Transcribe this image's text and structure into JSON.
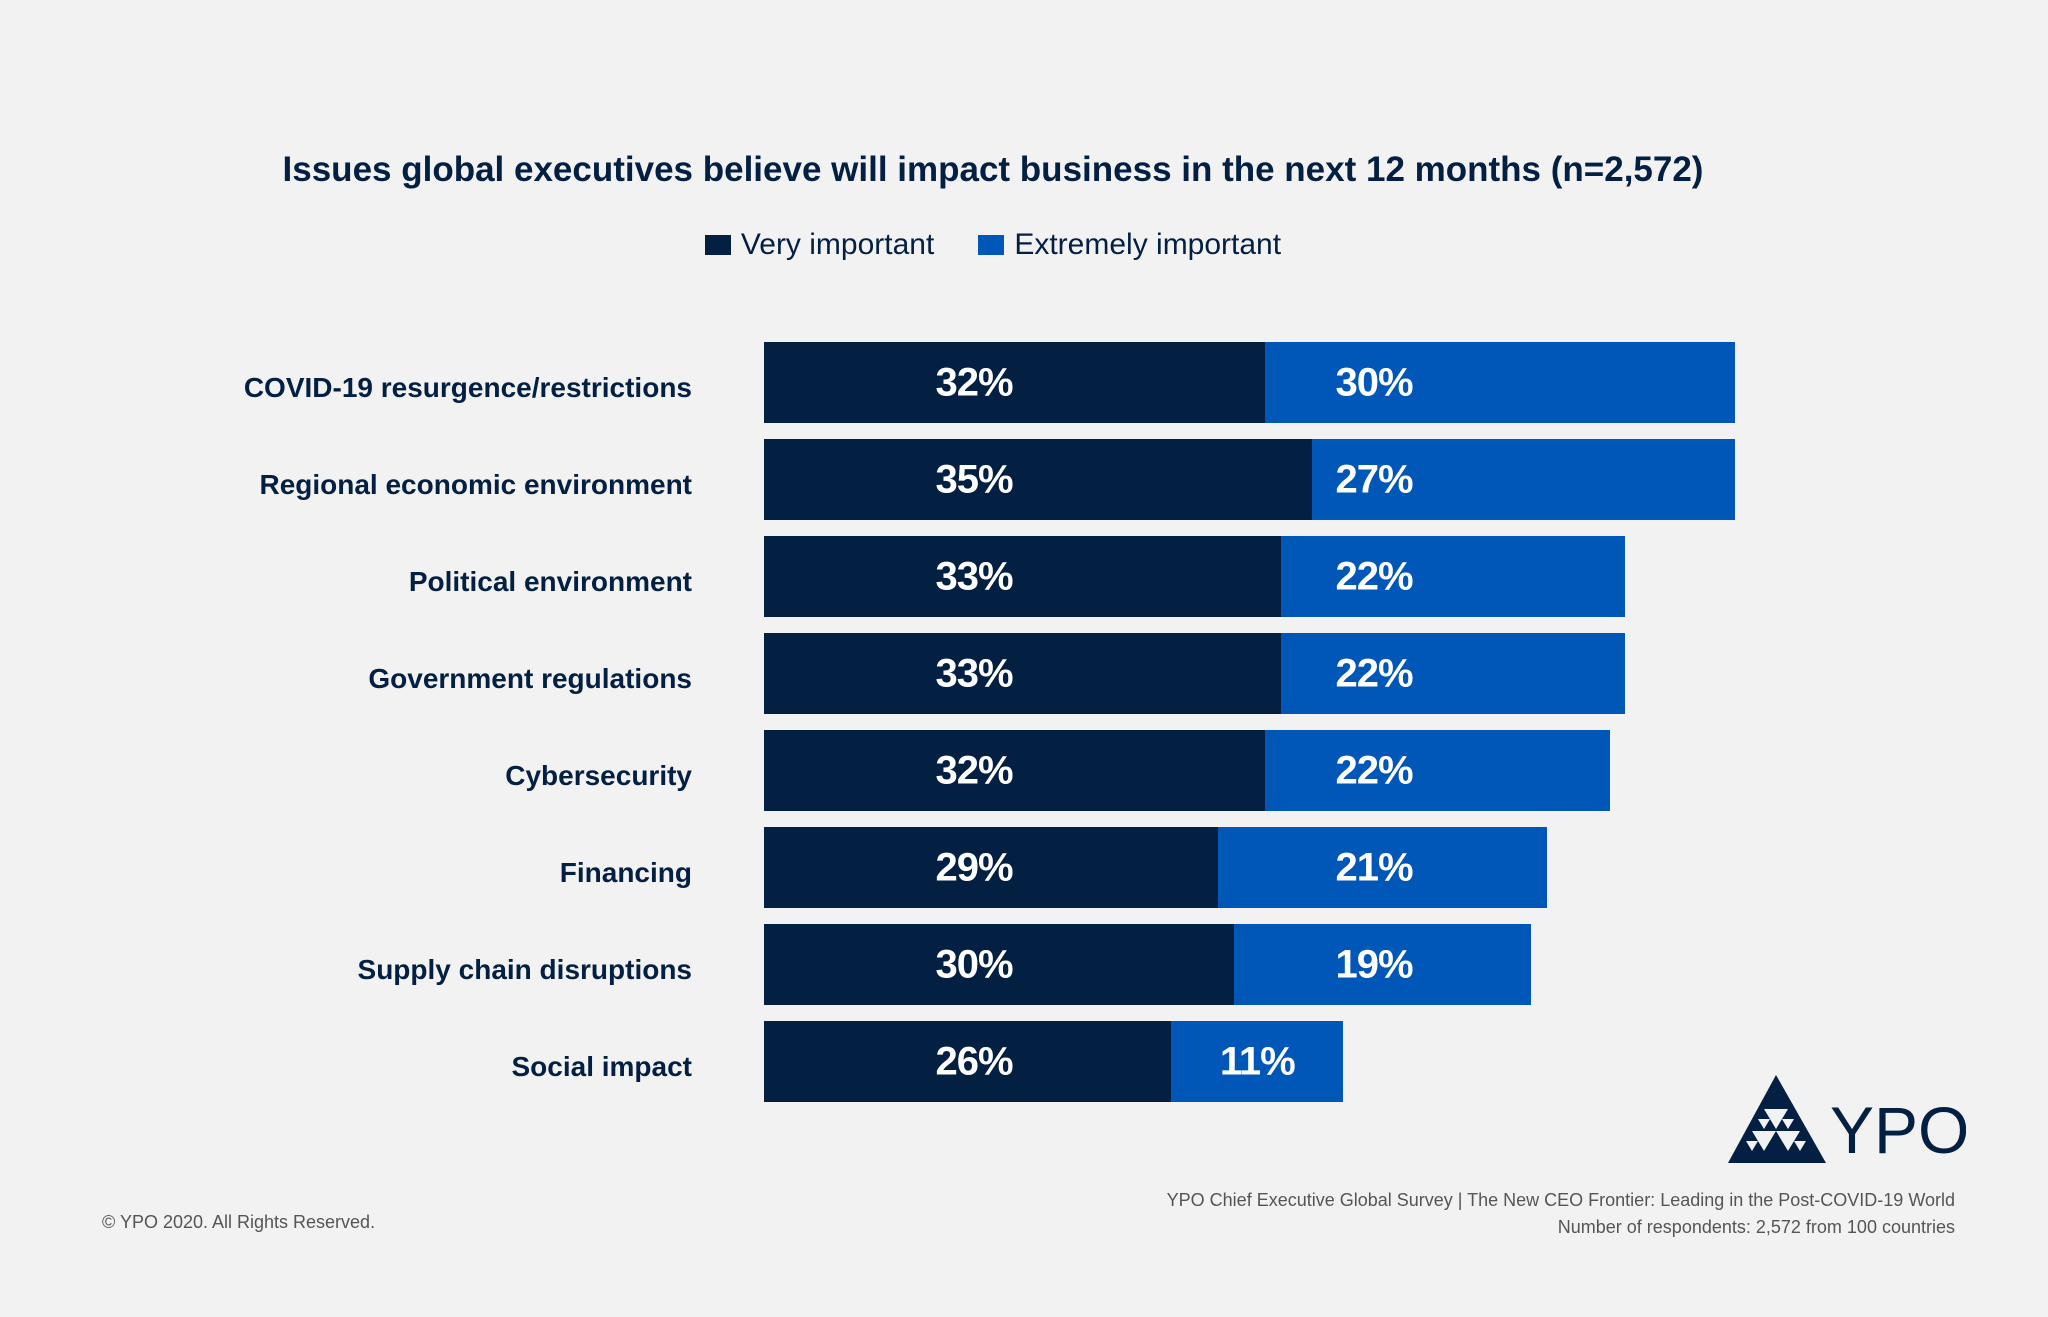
{
  "chart_data": {
    "type": "bar",
    "orientation": "horizontal",
    "stacked": true,
    "title": "Issues global executives believe will impact business in the next 12 months (n=2,572)",
    "categories": [
      "COVID-19 resurgence/restrictions",
      "Regional economic environment",
      "Political environment",
      "Government regulations",
      "Cybersecurity",
      "Financing",
      "Supply chain disruptions",
      "Social impact"
    ],
    "series": [
      {
        "name": "Very important",
        "color": "#031f42",
        "values": [
          32,
          35,
          33,
          33,
          32,
          29,
          30,
          26
        ],
        "labels": [
          "32%",
          "35%",
          "33%",
          "33%",
          "32%",
          "29%",
          "30%",
          "26%"
        ]
      },
      {
        "name": "Extremely important",
        "color": "#0057b8",
        "values": [
          30,
          27,
          22,
          22,
          22,
          21,
          19,
          11
        ],
        "labels": [
          "30%",
          "27%",
          "22%",
          "22%",
          "22%",
          "21%",
          "19%",
          "11%"
        ]
      }
    ],
    "legend": "top-center",
    "grid": false
  },
  "footer": {
    "copyright": "© YPO 2020. All Rights Reserved.",
    "source": "YPO Chief Executive Global Survey | The New CEO Frontier: Leading in the Post-COVID-19 World",
    "respondents": "Number of respondents: 2,572 from 100 countries"
  },
  "logo": {
    "text": "YPO",
    "color": "#031f42"
  }
}
